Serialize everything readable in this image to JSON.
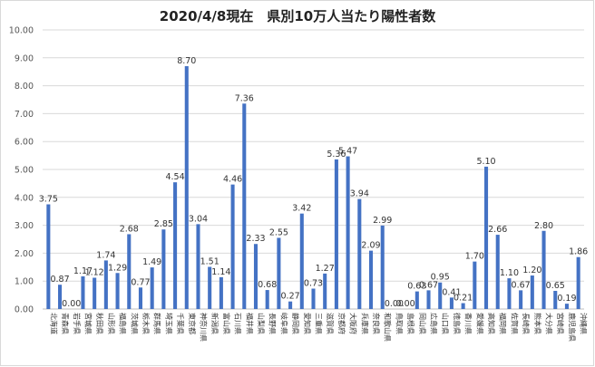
{
  "chart_data": {
    "type": "bar",
    "title": "2020/4/8現在　県別10万人当たり陽性者数",
    "xlabel": "",
    "ylabel": "",
    "ylim": [
      0,
      10
    ],
    "yticks": [
      "0.00",
      "1.00",
      "2.00",
      "3.00",
      "4.00",
      "5.00",
      "6.00",
      "7.00",
      "8.00",
      "9.00",
      "10.00"
    ],
    "grid": true,
    "legend": "none",
    "bar_color": "#4472c4",
    "categories": [
      "北海道",
      "青森県",
      "岩手県",
      "宮城県",
      "秋田県",
      "山形県",
      "福島県",
      "茨城県",
      "栃木県",
      "群馬県",
      "埼玉県",
      "千葉県",
      "東京都",
      "神奈川県",
      "新潟県",
      "富山県",
      "石川県",
      "福井県",
      "山梨県",
      "長野県",
      "岐阜県",
      "静岡県",
      "愛知県",
      "三重県",
      "滋賀県",
      "京都府",
      "大阪府",
      "兵庫県",
      "奈良県",
      "和歌山県",
      "鳥取県",
      "島根県",
      "岡山県",
      "広島県",
      "山口県",
      "徳島県",
      "香川県",
      "愛媛県",
      "高知県",
      "福岡県",
      "佐賀県",
      "長崎県",
      "熊本県",
      "大分県",
      "宮崎県",
      "鹿児島県",
      "沖縄県"
    ],
    "values": [
      3.75,
      0.87,
      0.0,
      1.17,
      1.12,
      1.74,
      1.29,
      2.68,
      0.77,
      1.49,
      2.85,
      4.54,
      8.7,
      3.04,
      1.51,
      1.14,
      4.46,
      7.36,
      2.33,
      0.68,
      2.55,
      0.27,
      3.42,
      0.73,
      1.27,
      5.36,
      5.47,
      3.94,
      2.09,
      2.99,
      0.0,
      0.0,
      0.63,
      0.67,
      0.95,
      0.41,
      0.21,
      1.7,
      5.1,
      2.66,
      1.1,
      0.67,
      1.2,
      2.8,
      0.65,
      0.19,
      1.86
    ],
    "labels": [
      "3.75",
      "0.87",
      "0.00",
      "1.17",
      "1.12",
      "1.74",
      "1.29",
      "2.68",
      "0.77",
      "1.49",
      "2.85",
      "4.54",
      "8.70",
      "3.04",
      "1.51",
      "1.14",
      "4.46",
      "7.36",
      "2.33",
      "0.68",
      "2.55",
      "0.27",
      "3.42",
      "0.73",
      "1.27",
      "5.36",
      "5.47",
      "3.94",
      "2.09",
      "2.99",
      "0.00",
      "0.00",
      "0.63",
      "0.67",
      "0.95",
      "0.41",
      "0.21",
      "1.70",
      "5.10",
      "2.66",
      "1.10",
      "0.67",
      "1.20",
      "2.80",
      "0.65",
      "0.19",
      "1.86"
    ]
  }
}
